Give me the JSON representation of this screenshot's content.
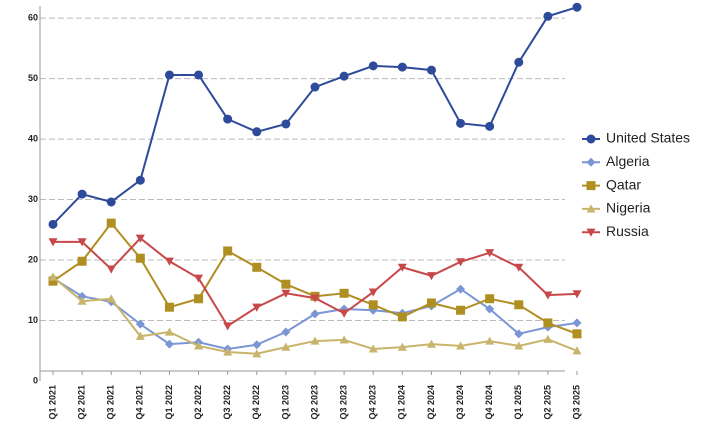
{
  "chart_data": {
    "type": "line",
    "categories": [
      "Q1 2021",
      "Q2 2021",
      "Q3 2021",
      "Q4 2021",
      "Q1 2022",
      "Q2 2022",
      "Q3 2022",
      "Q4 2022",
      "Q1 2023",
      "Q2 2023",
      "Q3 2023",
      "Q4 2023",
      "Q1 2024",
      "Q2 2024",
      "Q3 2024",
      "Q4 2024",
      "Q1 2025",
      "Q2 2025",
      "Q3 2025"
    ],
    "series": [
      {
        "name": "United States",
        "color": "#2e4a9a",
        "marker": "circle",
        "values": [
          25.9,
          30.9,
          29.6,
          33.2,
          50.6,
          50.6,
          43.3,
          41.2,
          42.5,
          48.6,
          50.4,
          52.1,
          51.9,
          51.4,
          42.6,
          42.1,
          52.7,
          60.3,
          61.8
        ]
      },
      {
        "name": "Algeria",
        "color": "#7b96d4",
        "marker": "diamond",
        "values": [
          17.0,
          14.0,
          13.1,
          9.4,
          6.1,
          6.4,
          5.3,
          6.0,
          8.1,
          11.1,
          11.9,
          11.7,
          11.2,
          12.4,
          15.2,
          11.9,
          7.8,
          8.9,
          9.6
        ]
      },
      {
        "name": "Qatar",
        "color": "#b08f22",
        "marker": "square",
        "values": [
          16.5,
          19.8,
          26.1,
          20.3,
          12.2,
          13.6,
          21.5,
          18.8,
          16.0,
          14.0,
          14.5,
          12.6,
          10.6,
          12.9,
          11.7,
          13.6,
          12.6,
          9.6,
          7.8
        ]
      },
      {
        "name": "Nigeria",
        "color": "#c8b46a",
        "marker": "triangle-up",
        "values": [
          17.2,
          13.2,
          13.6,
          7.4,
          8.1,
          5.8,
          4.8,
          4.5,
          5.6,
          6.6,
          6.8,
          5.3,
          5.6,
          6.1,
          5.8,
          6.6,
          5.8,
          6.9,
          5.0
        ]
      },
      {
        "name": "Russia",
        "color": "#c8484a",
        "marker": "triangle-down",
        "values": [
          23.0,
          23.0,
          18.5,
          23.6,
          19.8,
          17.0,
          9.1,
          12.2,
          14.5,
          13.7,
          11.2,
          14.7,
          18.8,
          17.4,
          19.7,
          21.2,
          18.8,
          14.2,
          14.4
        ]
      }
    ],
    "ylim": [
      0,
      62
    ],
    "yticks": [
      0,
      10,
      20,
      30,
      40,
      50,
      60
    ],
    "grid": true,
    "legend": "right"
  }
}
